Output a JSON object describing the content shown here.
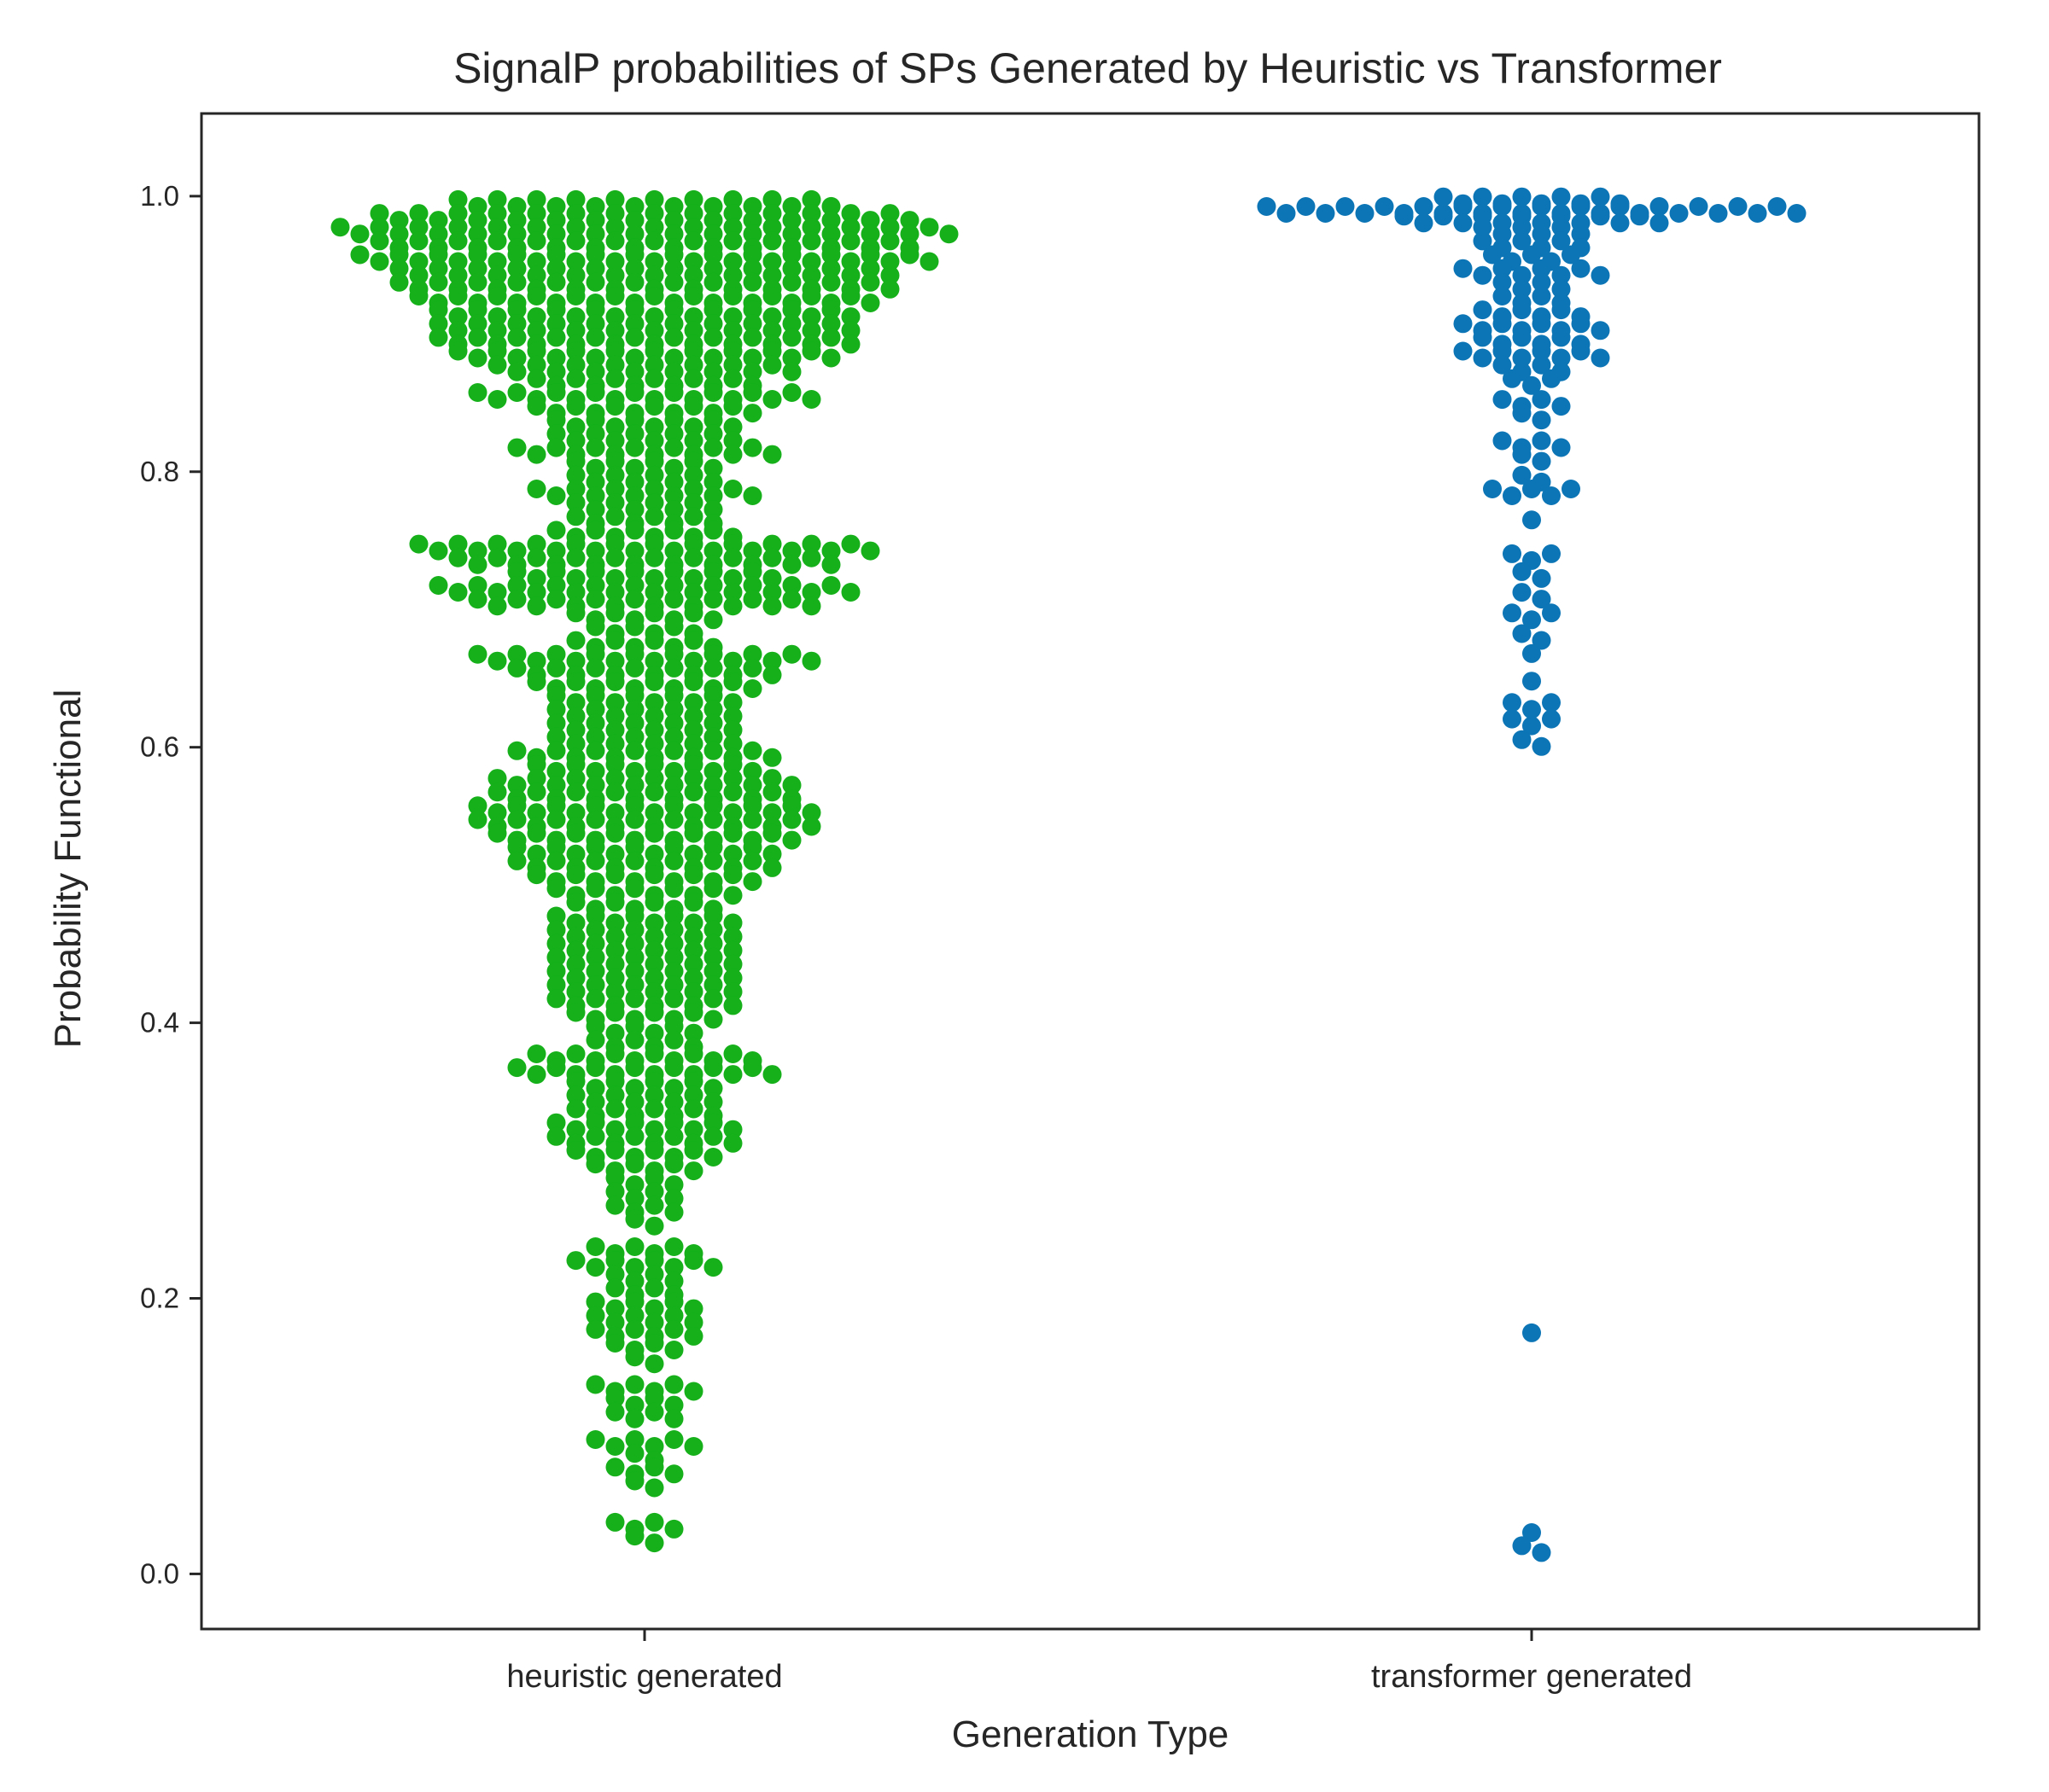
{
  "chart_data": {
    "type": "scatter",
    "subtype": "swarm",
    "title": "SignalP probabilities of SPs Generated by Heuristic vs Transformer",
    "xlabel": "Generation Type",
    "ylabel": "Probability Functional",
    "categories": [
      "heuristic generated",
      "transformer generated"
    ],
    "ylim": [
      -0.04,
      1.06
    ],
    "yticks": [
      0.0,
      0.2,
      0.4,
      0.6,
      0.8,
      1.0
    ],
    "ytick_labels": [
      "0.0",
      "0.2",
      "0.4",
      "0.6",
      "0.8",
      "1.0"
    ],
    "grid": false,
    "legend": "none",
    "series": [
      {
        "category": "heuristic generated",
        "color": "#15b01a",
        "bins": [
          {
            "y": 0.995,
            "count": 20
          },
          {
            "y": 0.985,
            "count": 28
          },
          {
            "y": 0.975,
            "count": 32
          },
          {
            "y": 0.965,
            "count": 28
          },
          {
            "y": 0.955,
            "count": 30
          },
          {
            "y": 0.945,
            "count": 26
          },
          {
            "y": 0.935,
            "count": 26
          },
          {
            "y": 0.925,
            "count": 24
          },
          {
            "y": 0.915,
            "count": 22
          },
          {
            "y": 0.905,
            "count": 22
          },
          {
            "y": 0.895,
            "count": 22
          },
          {
            "y": 0.885,
            "count": 20
          },
          {
            "y": 0.875,
            "count": 16
          },
          {
            "y": 0.865,
            "count": 12
          },
          {
            "y": 0.855,
            "count": 18
          },
          {
            "y": 0.845,
            "count": 12
          },
          {
            "y": 0.835,
            "count": 10
          },
          {
            "y": 0.825,
            "count": 10
          },
          {
            "y": 0.815,
            "count": 14
          },
          {
            "y": 0.805,
            "count": 8
          },
          {
            "y": 0.795,
            "count": 8
          },
          {
            "y": 0.785,
            "count": 12
          },
          {
            "y": 0.775,
            "count": 8
          },
          {
            "y": 0.765,
            "count": 8
          },
          {
            "y": 0.755,
            "count": 10
          },
          {
            "y": 0.745,
            "count": 24
          },
          {
            "y": 0.735,
            "count": 20
          },
          {
            "y": 0.725,
            "count": 14
          },
          {
            "y": 0.715,
            "count": 22
          },
          {
            "y": 0.705,
            "count": 18
          },
          {
            "y": 0.695,
            "count": 8
          },
          {
            "y": 0.685,
            "count": 6
          },
          {
            "y": 0.675,
            "count": 8
          },
          {
            "y": 0.665,
            "count": 18
          },
          {
            "y": 0.655,
            "count": 14
          },
          {
            "y": 0.645,
            "count": 12
          },
          {
            "y": 0.635,
            "count": 10
          },
          {
            "y": 0.625,
            "count": 10
          },
          {
            "y": 0.615,
            "count": 10
          },
          {
            "y": 0.605,
            "count": 10
          },
          {
            "y": 0.595,
            "count": 14
          },
          {
            "y": 0.585,
            "count": 12
          },
          {
            "y": 0.575,
            "count": 16
          },
          {
            "y": 0.565,
            "count": 16
          },
          {
            "y": 0.555,
            "count": 18
          },
          {
            "y": 0.545,
            "count": 18
          },
          {
            "y": 0.535,
            "count": 16
          },
          {
            "y": 0.525,
            "count": 14
          },
          {
            "y": 0.515,
            "count": 14
          },
          {
            "y": 0.505,
            "count": 12
          },
          {
            "y": 0.495,
            "count": 10
          },
          {
            "y": 0.485,
            "count": 8
          },
          {
            "y": 0.475,
            "count": 10
          },
          {
            "y": 0.465,
            "count": 10
          },
          {
            "y": 0.455,
            "count": 10
          },
          {
            "y": 0.445,
            "count": 10
          },
          {
            "y": 0.435,
            "count": 10
          },
          {
            "y": 0.425,
            "count": 10
          },
          {
            "y": 0.415,
            "count": 10
          },
          {
            "y": 0.405,
            "count": 8
          },
          {
            "y": 0.395,
            "count": 6
          },
          {
            "y": 0.385,
            "count": 6
          },
          {
            "y": 0.375,
            "count": 12
          },
          {
            "y": 0.365,
            "count": 14
          },
          {
            "y": 0.355,
            "count": 8
          },
          {
            "y": 0.345,
            "count": 8
          },
          {
            "y": 0.335,
            "count": 8
          },
          {
            "y": 0.325,
            "count": 10
          },
          {
            "y": 0.315,
            "count": 10
          },
          {
            "y": 0.305,
            "count": 8
          },
          {
            "y": 0.295,
            "count": 6
          },
          {
            "y": 0.285,
            "count": 4
          },
          {
            "y": 0.275,
            "count": 4
          },
          {
            "y": 0.265,
            "count": 4
          },
          {
            "y": 0.255,
            "count": 2
          },
          {
            "y": 0.235,
            "count": 6
          },
          {
            "y": 0.225,
            "count": 8
          },
          {
            "y": 0.215,
            "count": 4
          },
          {
            "y": 0.205,
            "count": 4
          },
          {
            "y": 0.195,
            "count": 6
          },
          {
            "y": 0.185,
            "count": 6
          },
          {
            "y": 0.175,
            "count": 6
          },
          {
            "y": 0.165,
            "count": 4
          },
          {
            "y": 0.155,
            "count": 2
          },
          {
            "y": 0.135,
            "count": 6
          },
          {
            "y": 0.125,
            "count": 4
          },
          {
            "y": 0.115,
            "count": 4
          },
          {
            "y": 0.095,
            "count": 6
          },
          {
            "y": 0.085,
            "count": 2
          },
          {
            "y": 0.075,
            "count": 4
          },
          {
            "y": 0.065,
            "count": 2
          },
          {
            "y": 0.035,
            "count": 4
          },
          {
            "y": 0.025,
            "count": 2
          }
        ]
      },
      {
        "category": "transformer generated",
        "color": "#0c75b5",
        "bins": [
          {
            "y": 0.997,
            "count": 10
          },
          {
            "y": 0.99,
            "count": 28
          },
          {
            "y": 0.983,
            "count": 14
          },
          {
            "y": 0.975,
            "count": 6
          },
          {
            "y": 0.965,
            "count": 6
          },
          {
            "y": 0.955,
            "count": 5
          },
          {
            "y": 0.945,
            "count": 8
          },
          {
            "y": 0.935,
            "count": 4
          },
          {
            "y": 0.925,
            "count": 4
          },
          {
            "y": 0.915,
            "count": 6
          },
          {
            "y": 0.905,
            "count": 8
          },
          {
            "y": 0.895,
            "count": 6
          },
          {
            "y": 0.885,
            "count": 8
          },
          {
            "y": 0.875,
            "count": 4
          },
          {
            "y": 0.865,
            "count": 3
          },
          {
            "y": 0.85,
            "count": 4
          },
          {
            "y": 0.84,
            "count": 2
          },
          {
            "y": 0.82,
            "count": 4
          },
          {
            "y": 0.81,
            "count": 2
          },
          {
            "y": 0.795,
            "count": 2
          },
          {
            "y": 0.785,
            "count": 5
          },
          {
            "y": 0.765,
            "count": 1
          },
          {
            "y": 0.738,
            "count": 3
          },
          {
            "y": 0.725,
            "count": 2
          },
          {
            "y": 0.71,
            "count": 2
          },
          {
            "y": 0.695,
            "count": 3
          },
          {
            "y": 0.68,
            "count": 2
          },
          {
            "y": 0.668,
            "count": 1
          },
          {
            "y": 0.648,
            "count": 1
          },
          {
            "y": 0.63,
            "count": 3
          },
          {
            "y": 0.618,
            "count": 3
          },
          {
            "y": 0.603,
            "count": 2
          },
          {
            "y": 0.175,
            "count": 1
          },
          {
            "y": 0.03,
            "count": 1
          },
          {
            "y": 0.018,
            "count": 2
          }
        ]
      }
    ]
  }
}
